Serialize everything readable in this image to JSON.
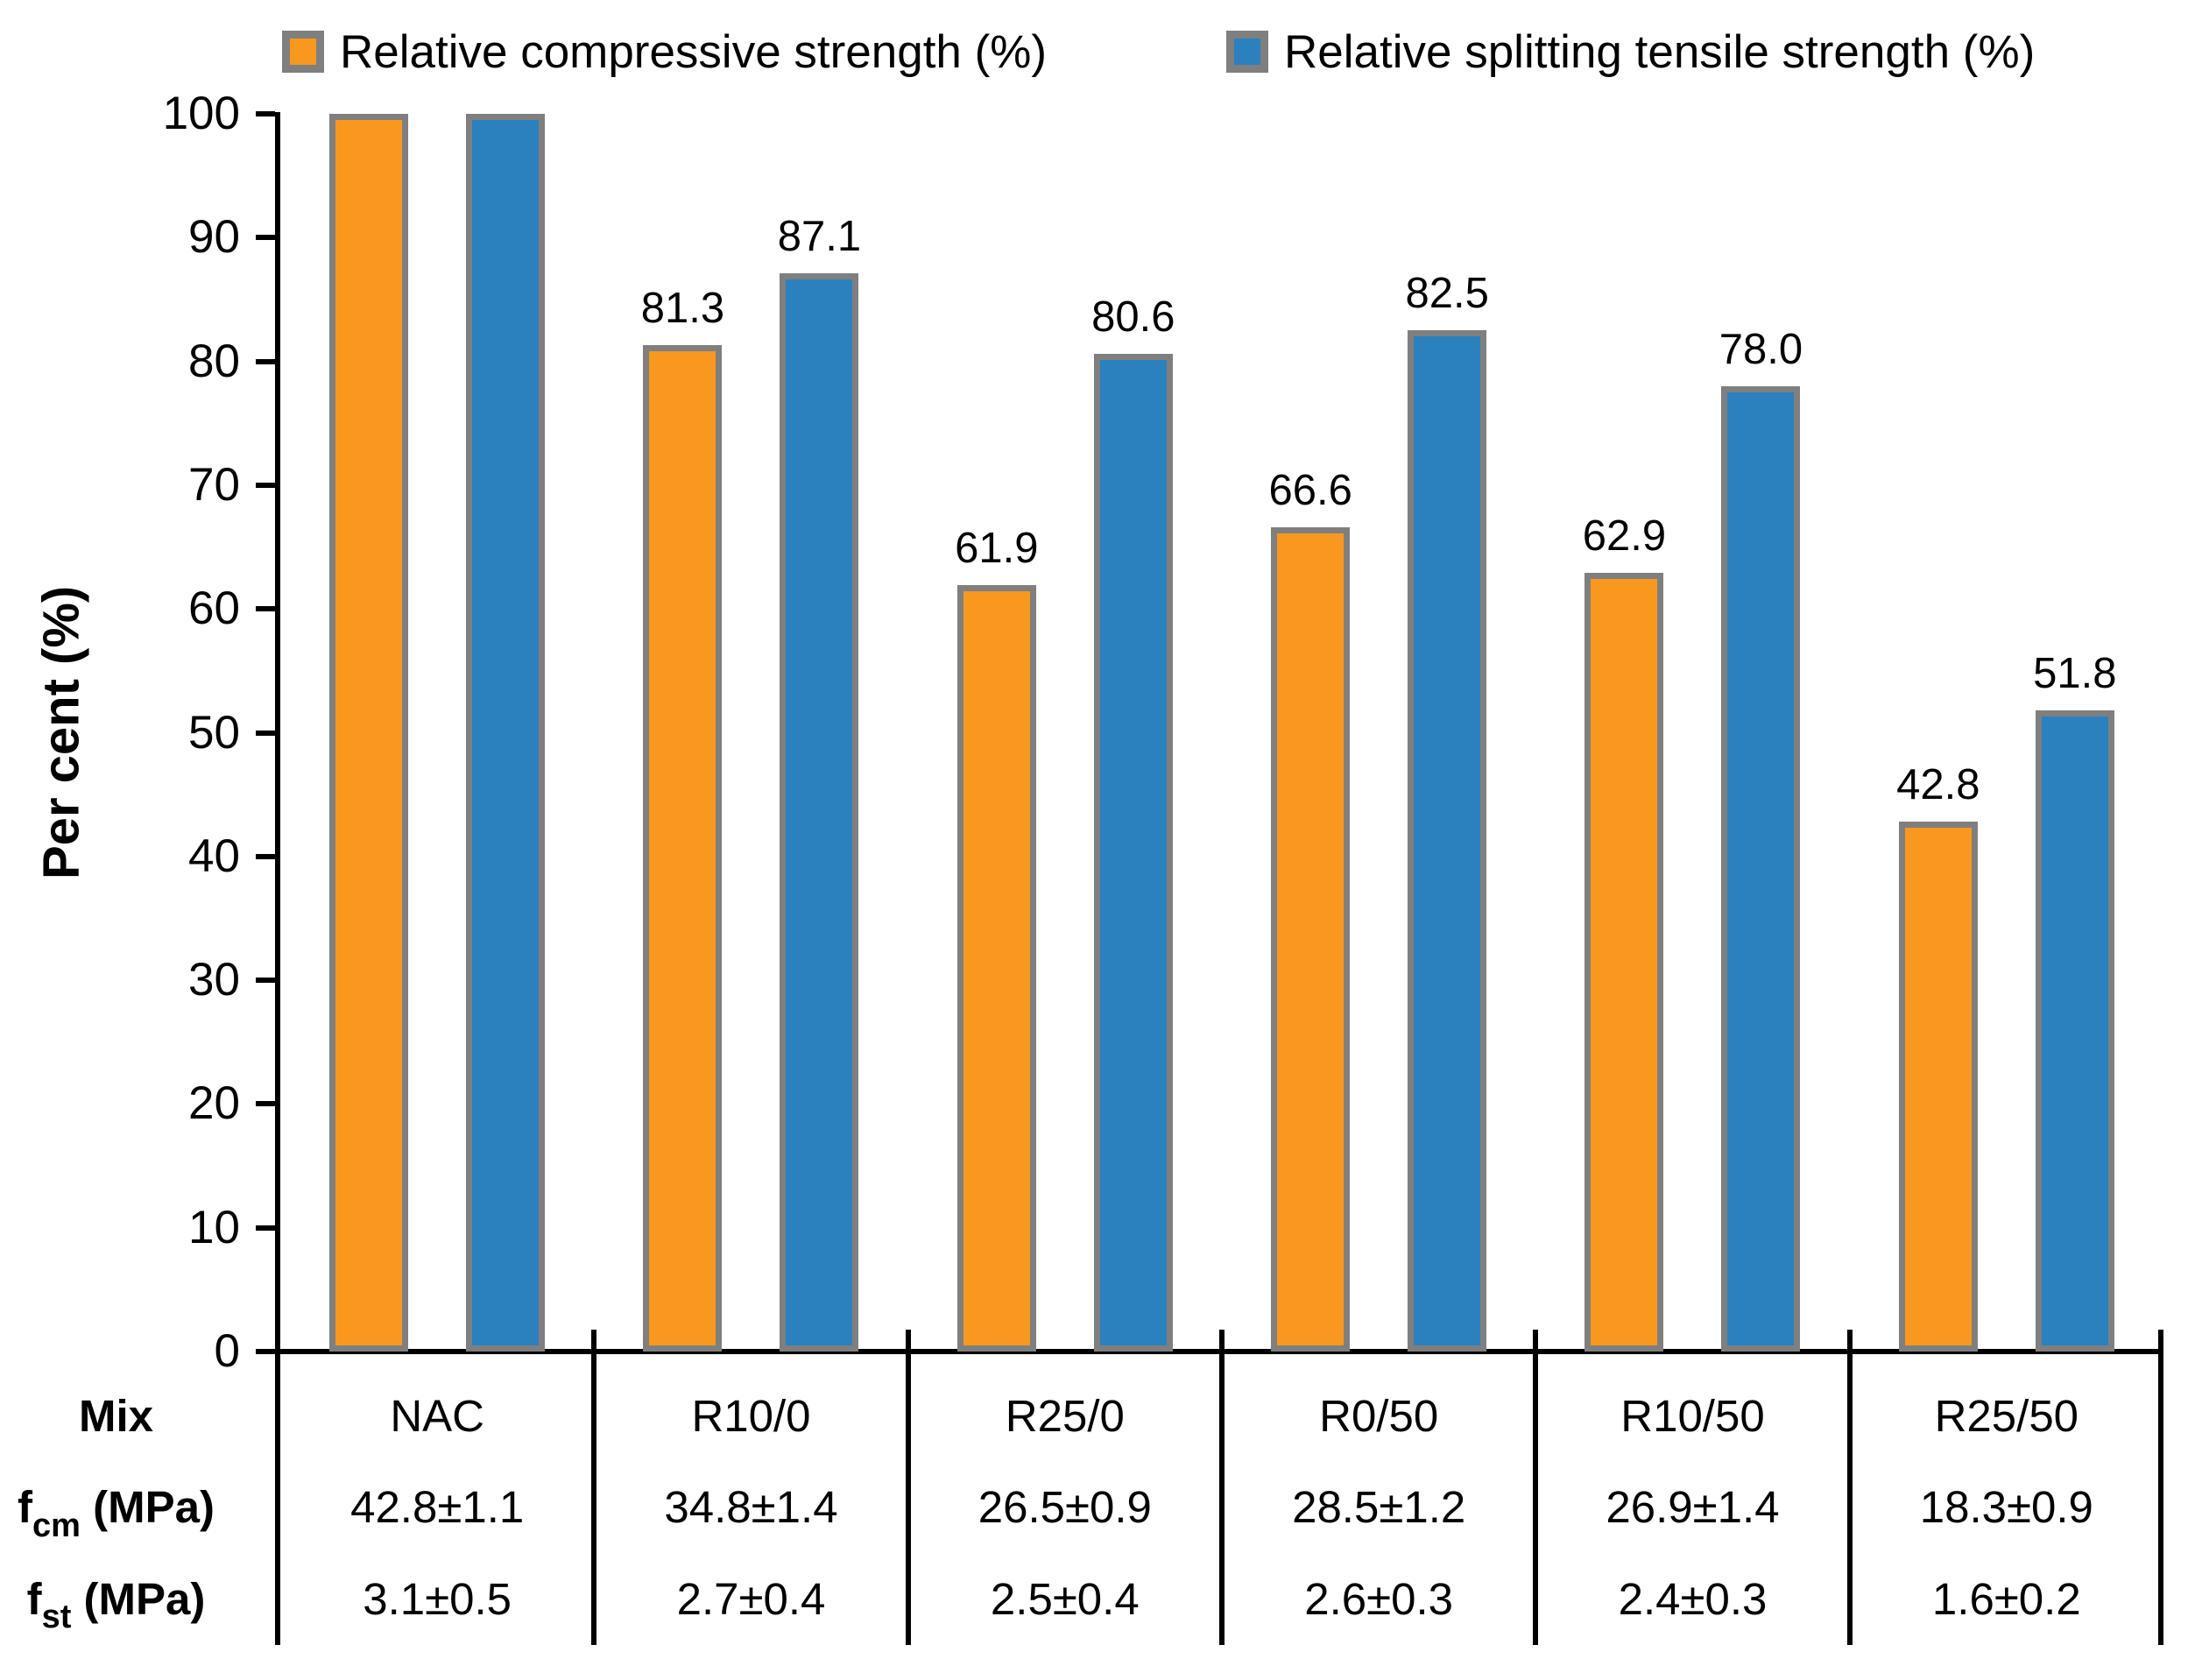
{
  "legend": [
    {
      "label": "Relative compressive strength (%)",
      "color": "#F9981E"
    },
    {
      "label": "Relative splitting tensile strength (%)",
      "color": "#2B80BE"
    }
  ],
  "y_axis": {
    "label": "Per cent (%)",
    "ticks": [
      0,
      10,
      20,
      30,
      40,
      50,
      60,
      70,
      80,
      90,
      100
    ],
    "max": 100
  },
  "chart_data": {
    "type": "bar",
    "title": "",
    "xlabel": "Mix",
    "ylabel": "Per cent (%)",
    "ylim": [
      0,
      100
    ],
    "grid": false,
    "legend_position": "top",
    "bar_border_color": "#7F7F7F",
    "categories": [
      "NAC",
      "R10/0",
      "R25/0",
      "R0/50",
      "R10/50",
      "R25/50"
    ],
    "series": [
      {
        "name": "Relative compressive strength (%)",
        "color": "#F9981E",
        "values": [
          100,
          81.3,
          61.9,
          66.6,
          62.9,
          42.8
        ],
        "labels": [
          "",
          "81.3",
          "61.9",
          "66.6",
          "62.9",
          "42.8"
        ]
      },
      {
        "name": "Relative splitting tensile strength (%)",
        "color": "#2B80BE",
        "values": [
          100,
          87.1,
          80.6,
          82.5,
          78.0,
          51.8
        ],
        "labels": [
          "",
          "87.1",
          "80.6",
          "82.5",
          "78.0",
          "51.8"
        ]
      }
    ]
  },
  "table": {
    "rows": [
      {
        "label_main": "Mix",
        "label_sub": "",
        "label_rest": "",
        "values": [
          "NAC",
          "R10/0",
          "R25/0",
          "R0/50",
          "R10/50",
          "R25/50"
        ]
      },
      {
        "label_main": "f",
        "label_sub": "cm",
        "label_rest": " (MPa)",
        "values": [
          "42.8±1.1",
          "34.8±1.4",
          "26.5±0.9",
          "28.5±1.2",
          "26.9±1.4",
          "18.3±0.9"
        ]
      },
      {
        "label_main": "f",
        "label_sub": "st",
        "label_rest": " (MPa)",
        "values": [
          "3.1±0.5",
          "2.7±0.4",
          "2.5±0.4",
          "2.6±0.3",
          "2.4±0.3",
          "1.6±0.2"
        ]
      }
    ]
  }
}
